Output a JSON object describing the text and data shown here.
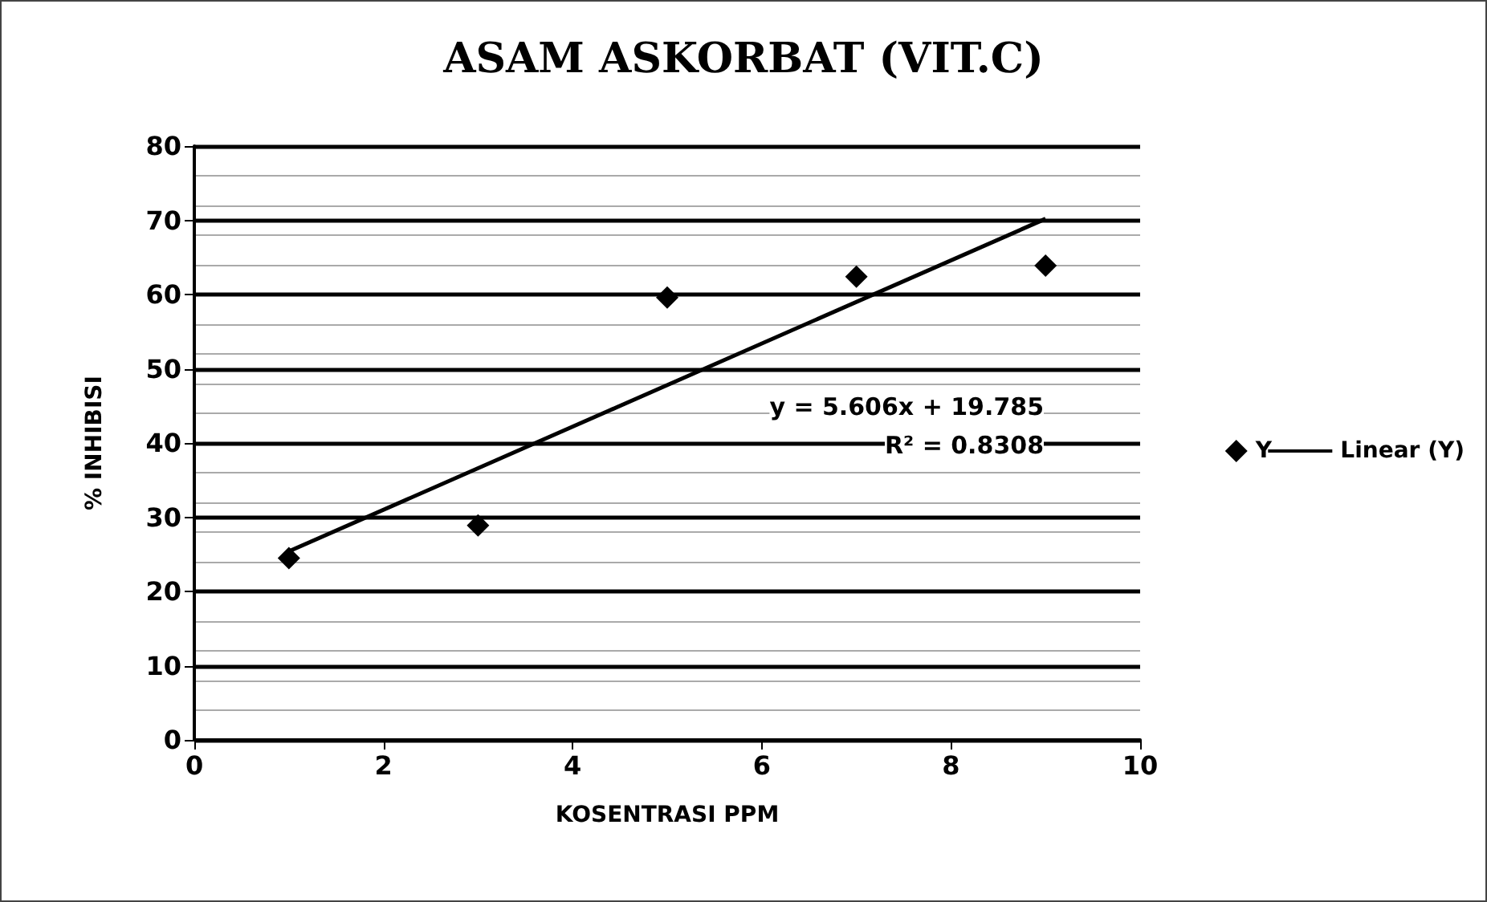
{
  "chart_data": {
    "type": "scatter",
    "title": "ASAM ASKORBAT (VIT.C)",
    "xlabel": "KOSENTRASI PPM",
    "ylabel": "% INHIBISI",
    "series": [
      {
        "name": "Y",
        "color": "#000000",
        "marker": "diamond",
        "x": [
          1,
          3,
          5,
          7,
          9
        ],
        "values": [
          24.5,
          28.9,
          59.6,
          62.4,
          63.9
        ]
      },
      {
        "name": "Linear (Y)",
        "type": "line",
        "color": "#000000",
        "marker": "none",
        "line_style": "solid",
        "x": [
          1,
          9
        ],
        "values": [
          25.4,
          70.2
        ]
      }
    ],
    "xlim": [
      0,
      10
    ],
    "xticks": [
      0,
      2,
      4,
      6,
      8,
      10
    ],
    "ylim": [
      0,
      80
    ],
    "yticks": [
      0,
      10,
      20,
      30,
      40,
      50,
      60,
      70,
      80
    ],
    "grid": "y",
    "legend": "right",
    "annotations": [
      "y = 5.606x + 19.785",
      "R² = 0.8308"
    ]
  }
}
